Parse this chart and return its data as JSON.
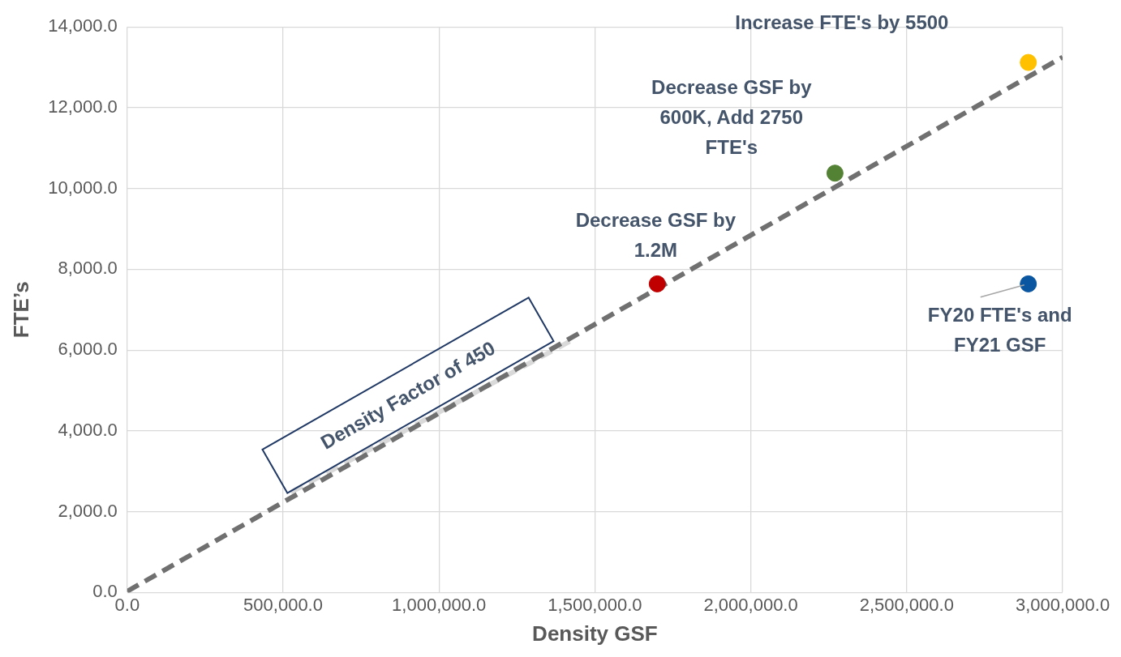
{
  "chart_data": {
    "type": "scatter",
    "xlabel": "Density GSF",
    "ylabel": "FTE’s",
    "xlim": [
      0,
      3000000
    ],
    "ylim": [
      0,
      14000
    ],
    "xticks": [
      {
        "value": 0,
        "label": "0.0"
      },
      {
        "value": 500000,
        "label": "500,000.0"
      },
      {
        "value": 1000000,
        "label": "1,000,000.0"
      },
      {
        "value": 1500000,
        "label": "1,500,000.0"
      },
      {
        "value": 2000000,
        "label": "2,000,000.0"
      },
      {
        "value": 2500000,
        "label": "2,500,000.0"
      },
      {
        "value": 3000000,
        "label": "3,000,000.0"
      }
    ],
    "yticks": [
      {
        "value": 0,
        "label": "0.0"
      },
      {
        "value": 2000,
        "label": "2,000.0"
      },
      {
        "value": 4000,
        "label": "4,000.0"
      },
      {
        "value": 6000,
        "label": "6,000.0"
      },
      {
        "value": 8000,
        "label": "8,000.0"
      },
      {
        "value": 10000,
        "label": "10,000.0"
      },
      {
        "value": 12000,
        "label": "12,000.0"
      },
      {
        "value": 14000,
        "label": "14,000.0"
      }
    ],
    "grid": true,
    "legend": false,
    "series": [
      {
        "type": "scatter",
        "marker": "circle",
        "x": [
          1700000,
          2270000,
          2890000,
          2890000
        ],
        "values": [
          7640,
          10380,
          13120,
          7640
        ],
        "colors": [
          "#c00000",
          "#548235",
          "#ffc000",
          "#0a56a0"
        ]
      },
      {
        "type": "line",
        "marker": "none",
        "x": [
          0,
          3000000
        ],
        "values": [
          30,
          13250
        ],
        "color": "#707070",
        "line_style": "dashed"
      },
      {
        "type": "line",
        "marker": "none",
        "x": [
          525000,
          1430000
        ],
        "values": [
          2480,
          6260
        ],
        "color": "#d9d9d9",
        "line_style": "dashed"
      }
    ],
    "annotations": [
      "Increase FTE's by 5500",
      "Decrease GSF by\n600K, Add 2750\nFTE's",
      "Decrease GSF by\n1.2M",
      "FY20 FTE's and\nFY21 GSF",
      "Density Factor of 450"
    ]
  }
}
